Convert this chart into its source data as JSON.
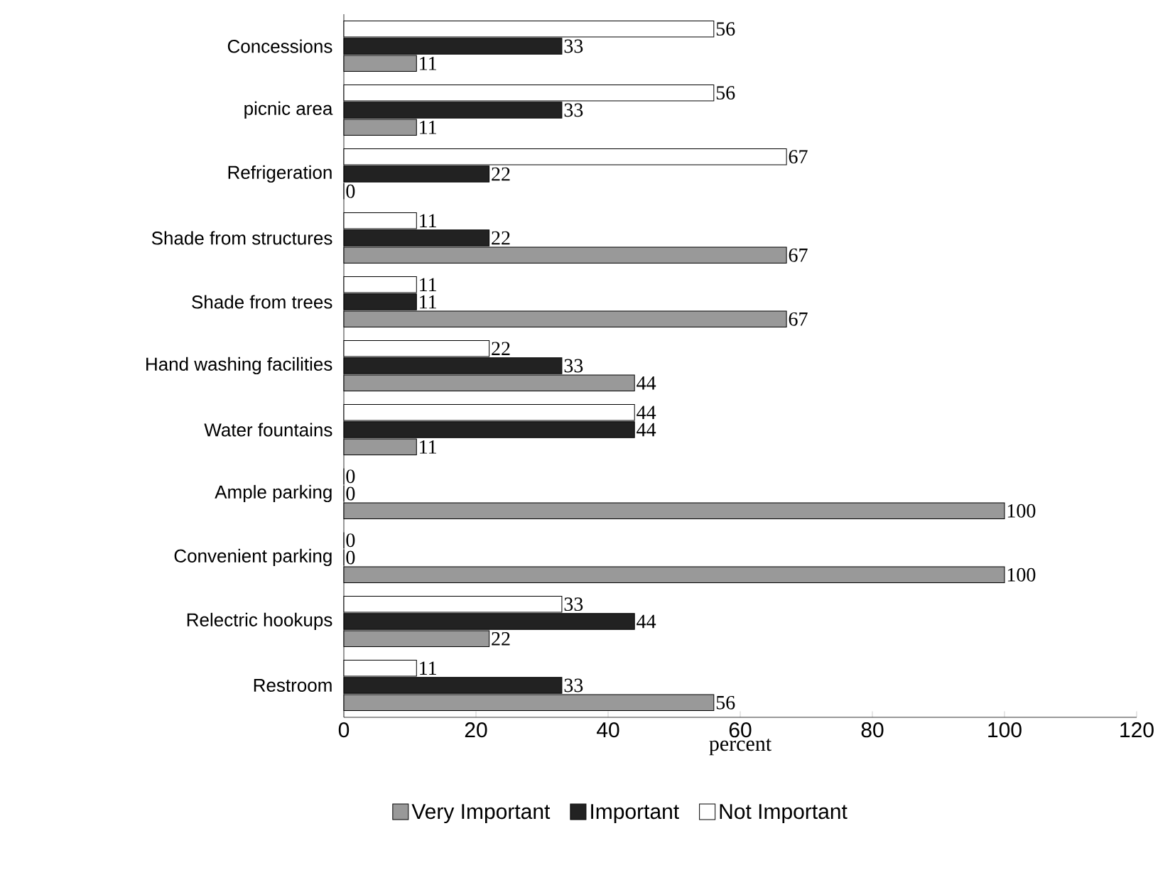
{
  "chart_data": {
    "type": "bar",
    "orientation": "horizontal",
    "xlabel": "percent",
    "categories": [
      "Concessions",
      "picnic area",
      "Refrigeration",
      "Shade from structures",
      "Shade from trees",
      "Hand washing facilities",
      "Water fountains",
      "Ample parking",
      "Convenient parking",
      "Relectric hookups",
      "Restroom"
    ],
    "series": [
      {
        "name": "Very Important",
        "color": "#999999",
        "values": [
          11,
          11,
          0,
          67,
          67,
          44,
          11,
          100,
          100,
          22,
          56
        ]
      },
      {
        "name": "Important",
        "color": "#222222",
        "values": [
          33,
          33,
          22,
          22,
          11,
          33,
          44,
          0,
          0,
          44,
          33
        ]
      },
      {
        "name": "Not Important",
        "color": "#ffffff",
        "values": [
          56,
          56,
          67,
          11,
          11,
          22,
          44,
          0,
          0,
          33,
          11
        ]
      }
    ],
    "xlim": [
      0,
      120
    ],
    "xticks": [
      0,
      20,
      40,
      60,
      80,
      100,
      120
    ],
    "data_labels": true,
    "legend": "bottom",
    "grid": false
  }
}
